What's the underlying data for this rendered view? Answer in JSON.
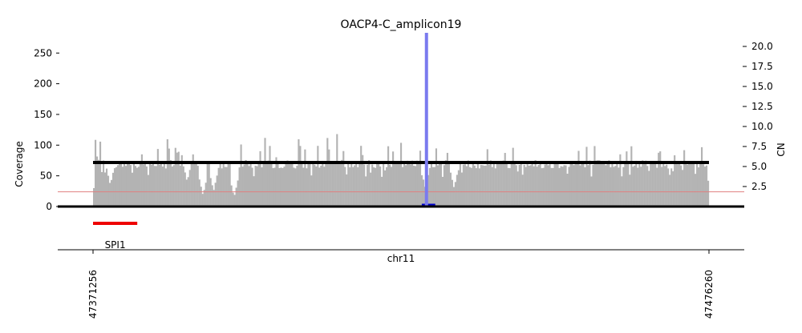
{
  "chart_data": {
    "type": "bar",
    "title": "OACP4-C_amplicon19",
    "xlabel": "chr11",
    "ylabel_left": "Coverage",
    "ylabel_right": "CN",
    "x_range": [
      47371256,
      47476260
    ],
    "x_tick_labels": [
      "47371256",
      "47476260"
    ],
    "ylim_left": [
      0,
      285
    ],
    "yticks_left": [
      "0",
      "50",
      "100",
      "150",
      "200",
      "250"
    ],
    "ylim_right": [
      0,
      21.7
    ],
    "yticks_right": [
      "2.5",
      "5.0",
      "7.5",
      "10.0",
      "12.5",
      "15.0",
      "17.5",
      "20.0"
    ],
    "coverage_bars": {
      "color": "#b3b3b3",
      "typical_range": [
        55,
        100
      ],
      "max_value": 118,
      "dips": [
        {
          "x": 47374200,
          "coverage": 35
        },
        {
          "x": 47387300,
          "coverage": 40
        },
        {
          "x": 47390000,
          "coverage": 18
        },
        {
          "x": 47391800,
          "coverage": 25
        },
        {
          "x": 47395300,
          "coverage": 15
        },
        {
          "x": 47427900,
          "coverage": 30
        },
        {
          "x": 47432800,
          "coverage": 30
        }
      ]
    },
    "segments": [
      {
        "name": "",
        "x_start": 47371256,
        "x_end": 47476260,
        "cn": 5.5,
        "color": "#000000"
      },
      {
        "name": "",
        "x_start": 47427300,
        "x_end": 47429600,
        "cn": 0.15,
        "color": "#0000cc"
      }
    ],
    "breakpoints": [
      {
        "x": 47428100,
        "color": "#7a7aee",
        "y_top_cn": 21.7
      }
    ],
    "threshold_line": {
      "coverage": 24,
      "color": "#e08080"
    },
    "genes": [
      {
        "name": "SPI1",
        "x_start": 47371256,
        "x_end": 47378800,
        "color": "#ee0000"
      }
    ]
  }
}
